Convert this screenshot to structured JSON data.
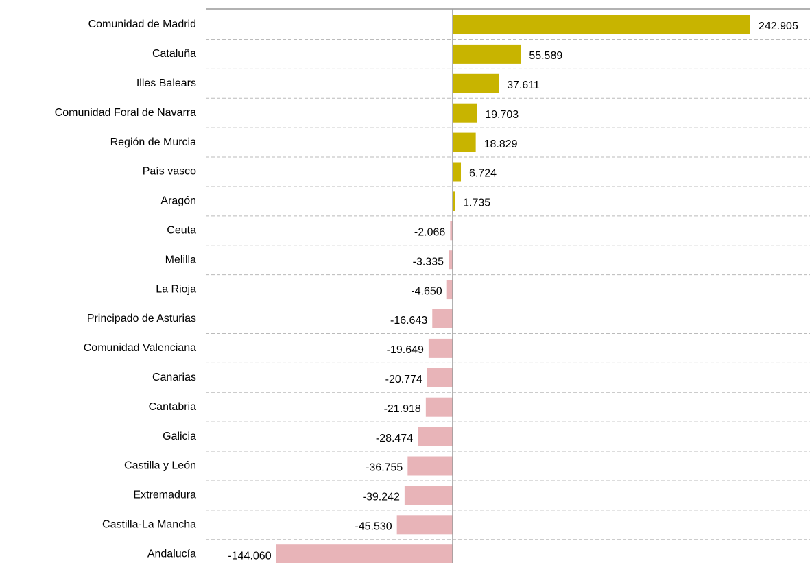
{
  "chart_data": {
    "type": "hbar",
    "categories": [
      "Comunidad de Madrid",
      "Cataluña",
      "Illes Balears",
      "Comunidad Foral de Navarra",
      "Región de Murcia",
      "País vasco",
      "Aragón",
      "Ceuta",
      "Melilla",
      "La Rioja",
      "Principado de Asturias",
      "Comunidad Valenciana",
      "Canarias",
      "Cantabria",
      "Galicia",
      "Castilla y León",
      "Extremadura",
      "Castilla-La Mancha",
      "Andalucía"
    ],
    "values": [
      242905,
      55589,
      37611,
      19703,
      18829,
      6724,
      1735,
      -2066,
      -3335,
      -4650,
      -16643,
      -19649,
      -20774,
      -21918,
      -28474,
      -36755,
      -39242,
      -45530,
      -144060
    ],
    "value_labels": [
      "242.905",
      "55.589",
      "37.611",
      "19.703",
      "18.829",
      "6.724",
      "1.735",
      "-2.066",
      "-3.335",
      "-4.650",
      "-16.643",
      "-19.649",
      "-20.774",
      "-21.918",
      "-28.474",
      "-36.755",
      "-39.242",
      "-45.530",
      "-144.060"
    ],
    "positive_color": "#c8b400",
    "negative_color": "#e8b4b8",
    "grid": true
  }
}
